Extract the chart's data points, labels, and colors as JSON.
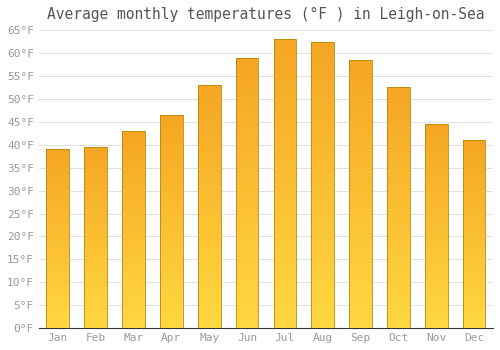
{
  "title": "Average monthly temperatures (°F ) in Leigh-on-Sea",
  "months": [
    "Jan",
    "Feb",
    "Mar",
    "Apr",
    "May",
    "Jun",
    "Jul",
    "Aug",
    "Sep",
    "Oct",
    "Nov",
    "Dec"
  ],
  "values": [
    39.0,
    39.5,
    43.0,
    46.5,
    53.0,
    59.0,
    63.0,
    62.5,
    58.5,
    52.5,
    44.5,
    41.0
  ],
  "bar_color_top": "#F5A623",
  "bar_color_bottom": "#FFD740",
  "bar_edge_color": "#B8860B",
  "background_color": "#FFFFFF",
  "grid_color": "#E0E0E0",
  "ylim": [
    0,
    65
  ],
  "yticks": [
    0,
    5,
    10,
    15,
    20,
    25,
    30,
    35,
    40,
    45,
    50,
    55,
    60,
    65
  ],
  "ytick_labels": [
    "0°F",
    "5°F",
    "10°F",
    "15°F",
    "20°F",
    "25°F",
    "30°F",
    "35°F",
    "40°F",
    "45°F",
    "50°F",
    "55°F",
    "60°F",
    "65°F"
  ],
  "title_fontsize": 10.5,
  "tick_fontsize": 8,
  "tick_font_color": "#999999",
  "title_font_color": "#555555",
  "bar_width": 0.6
}
